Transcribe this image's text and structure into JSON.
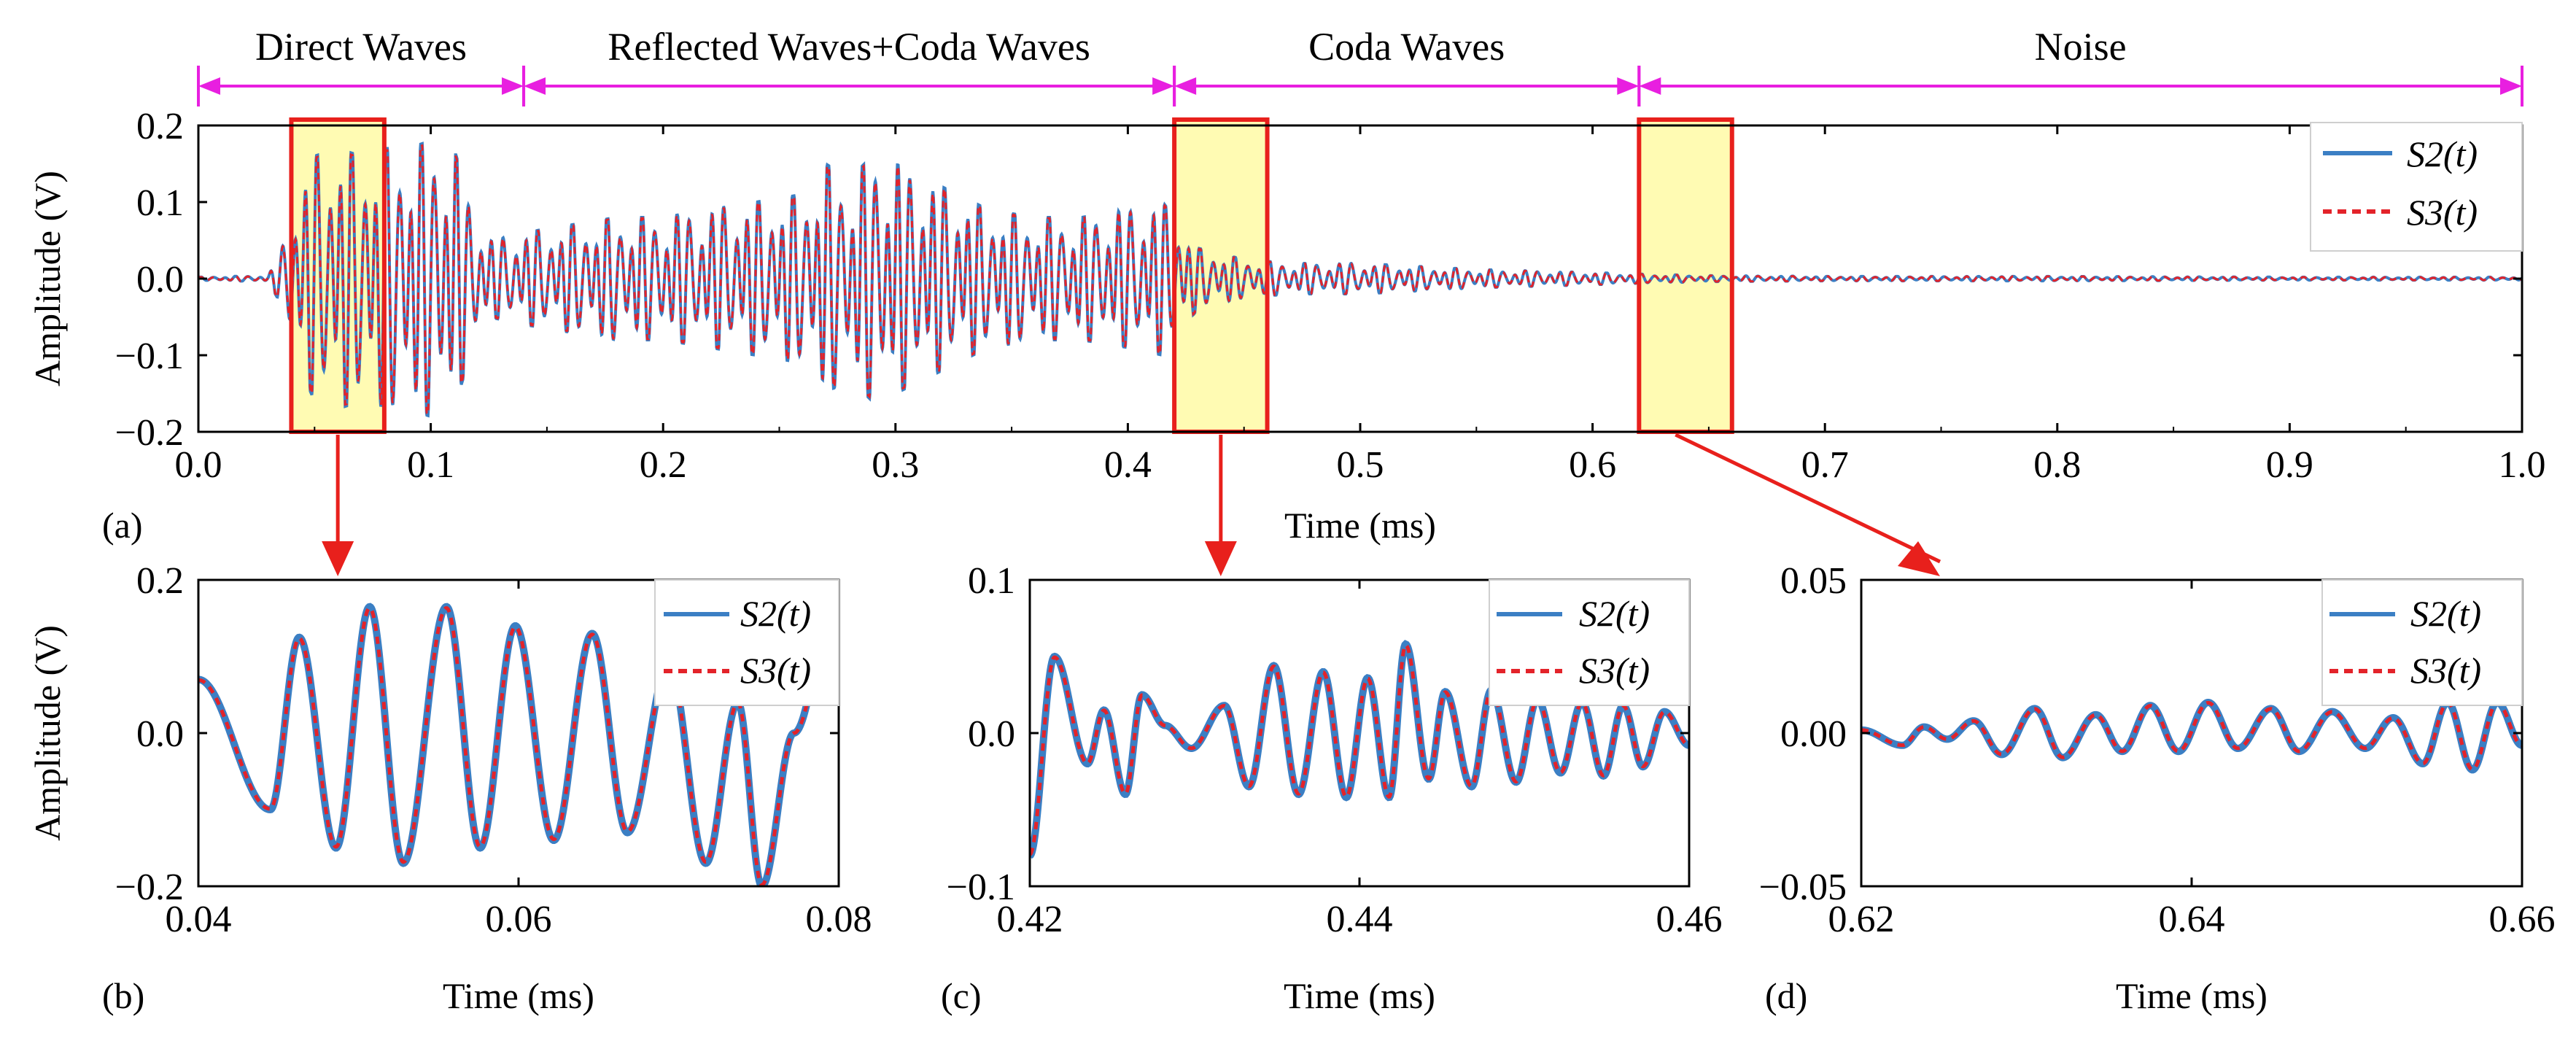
{
  "chart_data": [
    {
      "id": "a",
      "type": "line",
      "panel_label": "(a)",
      "xlabel": "Time (ms)",
      "ylabel": "Amplitude (V)",
      "xlim": [
        0.0,
        1.0
      ],
      "ylim": [
        -0.2,
        0.2
      ],
      "xticks": [
        "0.0",
        "0.1",
        "0.2",
        "0.3",
        "0.4",
        "0.5",
        "0.6",
        "0.7",
        "0.8",
        "0.9",
        "1.0"
      ],
      "yticks": [
        "0.2",
        "0.1",
        "0.0",
        "−0.1",
        "−0.2"
      ],
      "legend": [
        "S2(t)",
        "S3(t)"
      ],
      "legend_position": "top-right",
      "segments": [
        {
          "label": "Direct Waves",
          "start": 0.0,
          "end": 0.14
        },
        {
          "label": "Reflected Waves+Coda Waves",
          "start": 0.14,
          "end": 0.42
        },
        {
          "label": "Coda Waves",
          "start": 0.42,
          "end": 0.62
        },
        {
          "label": "Noise",
          "start": 0.62,
          "end": 1.0
        }
      ],
      "highlight_windows": [
        {
          "start": 0.04,
          "end": 0.08,
          "zoom_panel": "b"
        },
        {
          "start": 0.42,
          "end": 0.46,
          "zoom_panel": "c"
        },
        {
          "start": 0.62,
          "end": 0.66,
          "zoom_panel": "d"
        }
      ],
      "envelope": {
        "t": [
          0.0,
          0.03,
          0.035,
          0.04,
          0.05,
          0.06,
          0.07,
          0.08,
          0.09,
          0.1,
          0.11,
          0.115,
          0.125,
          0.14,
          0.16,
          0.18,
          0.2,
          0.22,
          0.24,
          0.26,
          0.27,
          0.28,
          0.29,
          0.3,
          0.32,
          0.34,
          0.36,
          0.38,
          0.4,
          0.415,
          0.43,
          0.45,
          0.47,
          0.5,
          0.55,
          0.6,
          0.62,
          0.65,
          0.7,
          0.8,
          0.9,
          1.0
        ],
        "amplitude": [
          0.002,
          0.004,
          0.03,
          0.09,
          0.16,
          0.17,
          0.16,
          0.17,
          0.17,
          0.18,
          0.17,
          0.12,
          0.05,
          0.06,
          0.07,
          0.08,
          0.08,
          0.09,
          0.1,
          0.11,
          0.15,
          0.13,
          0.16,
          0.15,
          0.12,
          0.09,
          0.08,
          0.08,
          0.09,
          0.1,
          0.04,
          0.025,
          0.02,
          0.02,
          0.012,
          0.008,
          0.006,
          0.004,
          0.003,
          0.003,
          0.002,
          0.002
        ]
      }
    },
    {
      "id": "b",
      "type": "line",
      "panel_label": "(b)",
      "xlabel": "Time (ms)",
      "ylabel": "Amplitude (V)",
      "xlim": [
        0.04,
        0.08
      ],
      "ylim": [
        -0.2,
        0.2
      ],
      "xticks": [
        "0.04",
        "0.06",
        "0.08"
      ],
      "yticks": [
        "0.2",
        "0.0",
        "−0.2"
      ],
      "legend": [
        "S2(t)",
        "S3(t)"
      ],
      "legend_position": "top-right",
      "extrema": {
        "t": [
          0.04,
          0.0445,
          0.0463,
          0.0486,
          0.0507,
          0.0528,
          0.0555,
          0.0576,
          0.0598,
          0.0622,
          0.0646,
          0.0668,
          0.0694,
          0.0717,
          0.0737,
          0.0752,
          0.0772,
          0.08
        ],
        "v": [
          0.07,
          -0.1,
          0.125,
          -0.15,
          0.165,
          -0.17,
          0.165,
          -0.15,
          0.14,
          -0.14,
          0.13,
          -0.13,
          0.09,
          -0.17,
          0.04,
          -0.2,
          0.0,
          0.2
        ]
      }
    },
    {
      "id": "c",
      "type": "line",
      "panel_label": "(c)",
      "xlabel": "Time (ms)",
      "ylabel": "",
      "xlim": [
        0.42,
        0.46
      ],
      "ylim": [
        -0.1,
        0.1
      ],
      "xticks": [
        "0.42",
        "0.44",
        "0.46"
      ],
      "yticks": [
        "0.1",
        "0.0",
        "−0.1"
      ],
      "legend": [
        "S2(t)",
        "S3(t)"
      ],
      "legend_position": "top-right",
      "extrema": {
        "t": [
          0.42,
          0.4215,
          0.4235,
          0.4245,
          0.4258,
          0.4268,
          0.4282,
          0.4298,
          0.4318,
          0.4333,
          0.4348,
          0.4363,
          0.4378,
          0.4392,
          0.4405,
          0.4418,
          0.4428,
          0.4442,
          0.4452,
          0.4468,
          0.448,
          0.4495,
          0.4508,
          0.4522,
          0.4535,
          0.4548,
          0.456,
          0.4572,
          0.4585,
          0.46
        ],
        "v": [
          -0.08,
          0.05,
          -0.02,
          0.015,
          -0.04,
          0.025,
          0.005,
          -0.01,
          0.018,
          -0.035,
          0.044,
          -0.04,
          0.04,
          -0.042,
          0.036,
          -0.042,
          0.058,
          -0.03,
          0.027,
          -0.035,
          0.028,
          -0.032,
          0.022,
          -0.026,
          0.02,
          -0.028,
          0.018,
          -0.022,
          0.014,
          -0.008
        ]
      }
    },
    {
      "id": "d",
      "type": "line",
      "panel_label": "(d)",
      "xlabel": "Time (ms)",
      "ylabel": "",
      "xlim": [
        0.62,
        0.66
      ],
      "ylim": [
        -0.05,
        0.05
      ],
      "xticks": [
        "0.62",
        "0.64",
        "0.66"
      ],
      "yticks": [
        "0.05",
        "0.00",
        "−0.05"
      ],
      "legend": [
        "S2(t)",
        "S3(t)"
      ],
      "legend_position": "top-right",
      "extrema": {
        "t": [
          0.62,
          0.6225,
          0.6238,
          0.6252,
          0.6268,
          0.6285,
          0.6305,
          0.6322,
          0.6342,
          0.6358,
          0.6375,
          0.6392,
          0.641,
          0.6428,
          0.6448,
          0.6465,
          0.6485,
          0.6505,
          0.6522,
          0.654,
          0.6555,
          0.657,
          0.6585,
          0.66
        ],
        "v": [
          0.001,
          -0.004,
          0.002,
          -0.002,
          0.004,
          -0.007,
          0.008,
          -0.008,
          0.006,
          -0.006,
          0.009,
          -0.006,
          0.01,
          -0.005,
          0.008,
          -0.006,
          0.007,
          -0.005,
          0.005,
          -0.01,
          0.01,
          -0.012,
          0.01,
          -0.004
        ]
      }
    }
  ],
  "colors": {
    "s2": "#3b7fc4",
    "s3": "#e3232a",
    "segment_arrow": "#e81fe0",
    "highlight_fill": "#fffaa6",
    "highlight_border": "#e8201c",
    "zoom_arrow": "#e8201c"
  }
}
